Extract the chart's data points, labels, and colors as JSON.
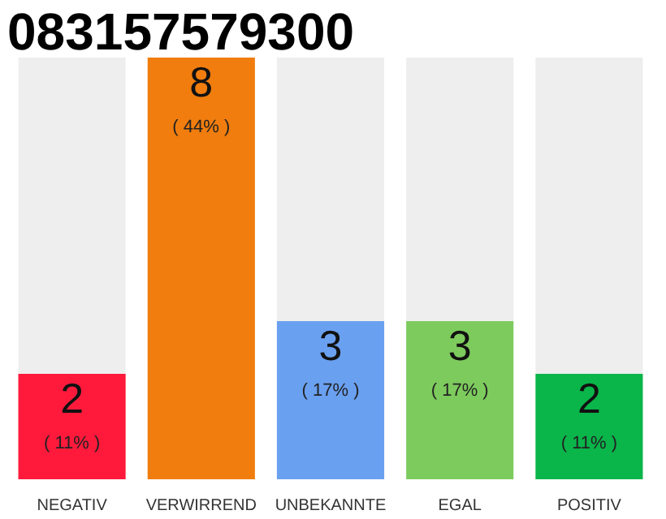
{
  "chart_data": {
    "type": "bar",
    "title": "083157579300",
    "stacked": true,
    "categories": [
      "NEGATIV",
      "VERWIRREND",
      "UNBEKANNTE",
      "EGAL",
      "POSITIV"
    ],
    "series": [
      {
        "colors": [
          "#ff1a3c",
          "#f07d0e",
          "#6aa0f0",
          "#7dcb5d",
          "#0ab54a"
        ],
        "values": [
          2,
          8,
          3,
          3,
          2
        ],
        "value_labels": [
          "2\n( 11% )",
          "8\n( 44% )",
          "3\n( 17% )",
          "3\n( 17% )",
          "2\n( 11% )"
        ]
      },
      {
        "color": "#eeeeee",
        "values": [
          6,
          0,
          5,
          5,
          6
        ]
      }
    ],
    "ylim": [
      0,
      8
    ],
    "tick_labels": "x"
  }
}
